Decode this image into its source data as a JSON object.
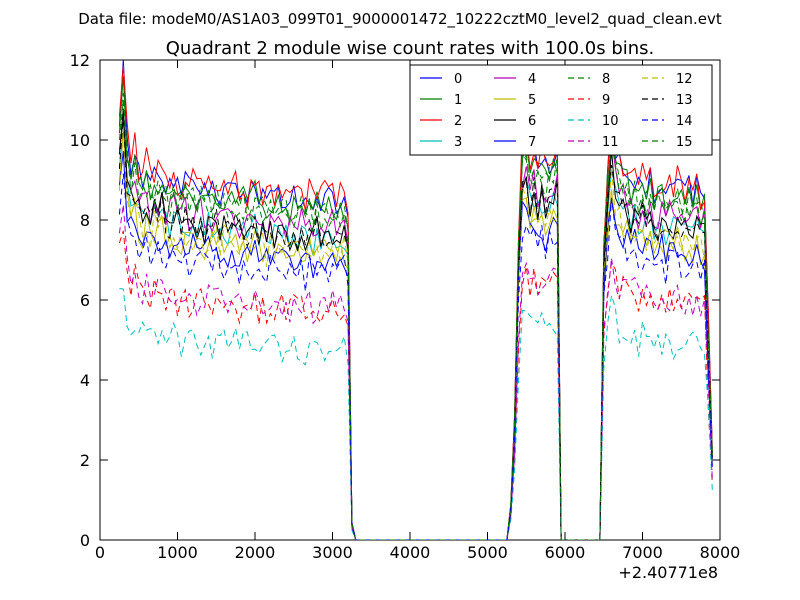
{
  "chart_data": {
    "type": "line",
    "suptitle": "Data file: modeM0/AS1A03_099T01_9000001472_10222cztM0_level2_quad_clean.evt",
    "title": "Quadrant 2 module wise count rates with 100.0s bins.",
    "xlabel": "",
    "ylabel": "",
    "x_offset_label": "+2.40771e8",
    "xlim": [
      0,
      8000
    ],
    "ylim": [
      0,
      12
    ],
    "xticks": [
      "0",
      "1000",
      "2000",
      "3000",
      "4000",
      "5000",
      "6000",
      "7000",
      "8000"
    ],
    "yticks": [
      "0",
      "2",
      "4",
      "6",
      "8",
      "10",
      "12"
    ],
    "legend_position": "top-right",
    "series": [
      {
        "name": "0",
        "color": "#0000ff",
        "dash": "solid",
        "level": 8.9
      },
      {
        "name": "1",
        "color": "#008000",
        "dash": "solid",
        "level": 8.7
      },
      {
        "name": "2",
        "color": "#ff0000",
        "dash": "solid",
        "level": 9.0
      },
      {
        "name": "3",
        "color": "#00bfbf",
        "dash": "solid",
        "level": 7.9
      },
      {
        "name": "4",
        "color": "#bf00bf",
        "dash": "solid",
        "level": 8.2
      },
      {
        "name": "5",
        "color": "#bfbf00",
        "dash": "solid",
        "level": 7.5
      },
      {
        "name": "6",
        "color": "#000000",
        "dash": "solid",
        "level": 8.0
      },
      {
        "name": "7",
        "color": "#0000ff",
        "dash": "solid",
        "level": 7.3
      },
      {
        "name": "8",
        "color": "#008000",
        "dash": "dashed",
        "level": 8.5
      },
      {
        "name": "9",
        "color": "#ff0000",
        "dash": "dashed",
        "level": 6.0
      },
      {
        "name": "10",
        "color": "#00bfbf",
        "dash": "dashed",
        "level": 5.0
      },
      {
        "name": "11",
        "color": "#bf00bf",
        "dash": "dashed",
        "level": 6.1
      },
      {
        "name": "12",
        "color": "#bfbf00",
        "dash": "dashed",
        "level": 7.6
      },
      {
        "name": "13",
        "color": "#000000",
        "dash": "dashed",
        "level": 8.0
      },
      {
        "name": "14",
        "color": "#0000ff",
        "dash": "dashed",
        "level": 7.0
      },
      {
        "name": "15",
        "color": "#008000",
        "dash": "dashed",
        "level": 8.5
      }
    ],
    "time_profile": {
      "x": [
        250,
        300,
        350,
        400,
        450,
        500,
        550,
        600,
        650,
        700,
        750,
        800,
        850,
        900,
        950,
        1000,
        1050,
        1100,
        1150,
        1200,
        1250,
        1300,
        1350,
        1400,
        1450,
        1500,
        1550,
        1600,
        1650,
        1700,
        1750,
        1800,
        1850,
        1900,
        1950,
        2000,
        2050,
        2100,
        2150,
        2200,
        2250,
        2300,
        2350,
        2400,
        2450,
        2500,
        2550,
        2600,
        2650,
        2700,
        2750,
        2800,
        2850,
        2900,
        2950,
        3000,
        3050,
        3100,
        3150,
        3200,
        3250,
        3300,
        3350,
        3400,
        3500,
        4000,
        4500,
        5000,
        5250,
        5300,
        5350,
        5400,
        5450,
        5500,
        5550,
        5600,
        5650,
        5700,
        5750,
        5800,
        5850,
        5900,
        5950,
        6000,
        6050,
        6100,
        6400,
        6450,
        6500,
        6550,
        6600,
        6650,
        6700,
        6750,
        6800,
        6850,
        6900,
        6950,
        7000,
        7050,
        7100,
        7150,
        7200,
        7250,
        7300,
        7350,
        7400,
        7450,
        7500,
        7550,
        7600,
        7650,
        7700,
        7750,
        7800,
        7850,
        7900
      ],
      "factor": [
        1.2,
        1.32,
        1.12,
        1.06,
        1.1,
        1.04,
        1.02,
        1.05,
        1.0,
        1.03,
        1.01,
        1.04,
        1.0,
        0.99,
        1.02,
        1.0,
        0.98,
        1.01,
        0.99,
        1.0,
        0.98,
        1.0,
        0.97,
        0.99,
        0.98,
        1.0,
        0.97,
        0.99,
        0.98,
        0.96,
        0.99,
        0.97,
        0.98,
        0.96,
        0.97,
        0.99,
        0.96,
        0.97,
        0.95,
        0.98,
        0.96,
        0.95,
        0.97,
        0.96,
        0.94,
        0.96,
        0.95,
        0.97,
        0.94,
        0.96,
        0.95,
        0.97,
        0.94,
        0.96,
        0.95,
        0.97,
        0.96,
        0.95,
        0.96,
        0.95,
        0.05,
        0.0,
        0.0,
        0.0,
        0.0,
        0.0,
        0.0,
        0.0,
        0.0,
        0.1,
        0.35,
        0.85,
        1.12,
        1.1,
        1.06,
        1.09,
        1.05,
        1.08,
        1.04,
        1.07,
        1.05,
        1.09,
        0.0,
        0.0,
        0.0,
        0.0,
        0.0,
        0.0,
        0.85,
        1.05,
        1.22,
        1.1,
        1.05,
        1.04,
        1.02,
        1.0,
        1.01,
        0.99,
        1.02,
        0.98,
        1.0,
        0.99,
        0.98,
        1.0,
        0.97,
        0.99,
        0.98,
        1.0,
        0.97,
        0.98,
        0.99,
        0.97,
        0.98,
        0.96,
        0.97,
        0.6,
        0.25
      ]
    }
  }
}
